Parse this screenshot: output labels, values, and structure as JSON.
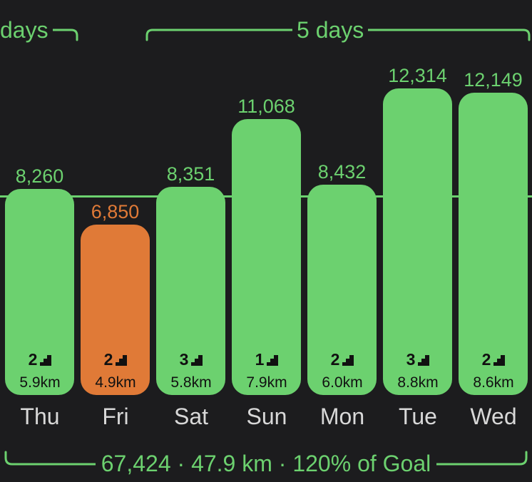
{
  "header": {
    "left_streak_label": "days",
    "right_streak_label": "5 days"
  },
  "summary": {
    "steps": "67,424",
    "distance": "47.9 km",
    "goal": "120% of Goal",
    "separator": "·"
  },
  "colors": {
    "background": "#1c1c1e",
    "met_goal": "#6cd16f",
    "missed_goal": "#e07a37",
    "text_dark": "#111111",
    "day_label": "#d8d8d8"
  },
  "chart_data": {
    "type": "bar",
    "categories": [
      "Thu",
      "Fri",
      "Sat",
      "Sun",
      "Mon",
      "Tue",
      "Wed"
    ],
    "values": [
      8260,
      6850,
      8351,
      11068,
      8432,
      12314,
      12149
    ],
    "value_labels": [
      "8,260",
      "6,850",
      "8,351",
      "11,068",
      "8,432",
      "12,314",
      "12,149"
    ],
    "flights": [
      "2",
      "2",
      "3",
      "1",
      "2",
      "3",
      "2"
    ],
    "distance_labels": [
      "5.9km",
      "4.9km",
      "5.8km",
      "7.9km",
      "6.0km",
      "8.8km",
      "8.6km"
    ],
    "goal_met": [
      true,
      false,
      true,
      true,
      true,
      true,
      true
    ],
    "goal_value": 8000
  }
}
